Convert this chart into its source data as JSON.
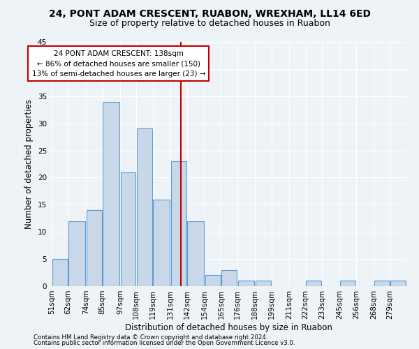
{
  "title1": "24, PONT ADAM CRESCENT, RUABON, WREXHAM, LL14 6ED",
  "title2": "Size of property relative to detached houses in Ruabon",
  "xlabel": "Distribution of detached houses by size in Ruabon",
  "ylabel": "Number of detached properties",
  "footnote1": "Contains HM Land Registry data © Crown copyright and database right 2024.",
  "footnote2": "Contains public sector information licensed under the Open Government Licence v3.0.",
  "bin_labels": [
    "51sqm",
    "62sqm",
    "74sqm",
    "85sqm",
    "97sqm",
    "108sqm",
    "119sqm",
    "131sqm",
    "142sqm",
    "154sqm",
    "165sqm",
    "176sqm",
    "188sqm",
    "199sqm",
    "211sqm",
    "222sqm",
    "233sqm",
    "245sqm",
    "256sqm",
    "268sqm",
    "279sqm"
  ],
  "bar_heights": [
    5,
    12,
    14,
    34,
    21,
    29,
    16,
    23,
    12,
    2,
    3,
    1,
    1,
    0,
    0,
    1,
    0,
    1,
    0,
    1,
    1
  ],
  "bin_edges": [
    51,
    62,
    74,
    85,
    97,
    108,
    119,
    131,
    142,
    154,
    165,
    176,
    188,
    199,
    211,
    222,
    233,
    245,
    256,
    268,
    279,
    290
  ],
  "bar_color": "#c8d8e8",
  "bar_edge_color": "#5b9bd5",
  "vline_x": 138,
  "vline_color": "#c00000",
  "annotation_line1": "24 PONT ADAM CRESCENT: 138sqm",
  "annotation_line2": "← 86% of detached houses are smaller (150)",
  "annotation_line3": "13% of semi-detached houses are larger (23) →",
  "annotation_box_color": "#c00000",
  "bg_color": "#eef3f8",
  "grid_color": "#ffffff",
  "ylim": [
    0,
    45
  ],
  "yticks": [
    0,
    5,
    10,
    15,
    20,
    25,
    30,
    35,
    40,
    45
  ],
  "title1_fontsize": 10,
  "title2_fontsize": 9,
  "axis_label_fontsize": 8.5,
  "tick_fontsize": 7.5,
  "annotation_fontsize": 7.5
}
